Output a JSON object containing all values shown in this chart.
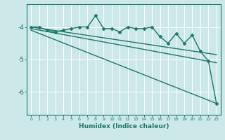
{
  "xlabel": "Humidex (Indice chaleur)",
  "bg_color": "#cce8e8",
  "grid_color": "#ffffff",
  "line_color": "#1a7a6a",
  "xlim": [
    -0.5,
    23.5
  ],
  "ylim": [
    -6.7,
    -3.3
  ],
  "yticks": [
    -6,
    -5,
    -4
  ],
  "xticks": [
    0,
    1,
    2,
    3,
    4,
    5,
    6,
    7,
    8,
    9,
    10,
    11,
    12,
    13,
    14,
    15,
    16,
    17,
    18,
    19,
    20,
    21,
    22,
    23
  ],
  "series": [
    {
      "x": [
        0,
        1,
        2,
        3,
        4,
        5,
        6,
        7,
        8,
        9,
        10,
        11,
        12,
        13,
        14,
        15,
        16,
        17,
        18,
        19,
        20,
        21,
        22,
        23
      ],
      "y": [
        -4.0,
        -4.0,
        -4.1,
        -4.15,
        -4.1,
        -4.05,
        -4.0,
        -4.0,
        -3.65,
        -4.05,
        -4.05,
        -4.15,
        -4.0,
        -4.05,
        -4.05,
        -4.0,
        -4.3,
        -4.5,
        -4.2,
        -4.5,
        -4.25,
        -4.75,
        -5.05,
        -6.35
      ],
      "marker": "D",
      "markersize": 2.5,
      "linewidth": 1.0
    },
    {
      "x": [
        0,
        23
      ],
      "y": [
        -4.0,
        -4.85
      ],
      "marker": null,
      "linewidth": 1.0
    },
    {
      "x": [
        0,
        23
      ],
      "y": [
        -4.05,
        -5.1
      ],
      "marker": null,
      "linewidth": 1.0
    },
    {
      "x": [
        0,
        23
      ],
      "y": [
        -4.1,
        -6.35
      ],
      "marker": null,
      "linewidth": 1.0
    }
  ]
}
